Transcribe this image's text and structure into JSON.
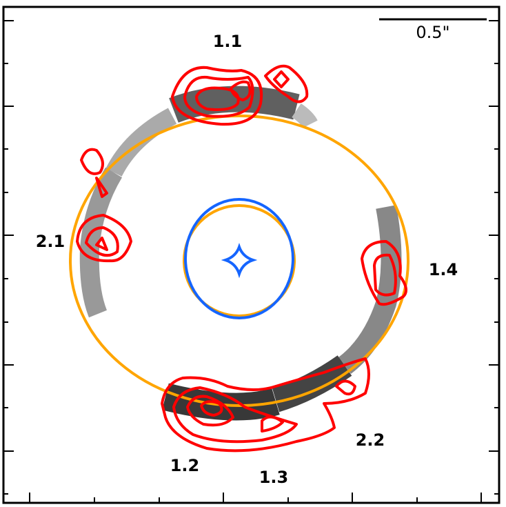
{
  "scale_bar": {
    "label": "0.5\""
  },
  "images": [
    {
      "label": "1.1"
    },
    {
      "label": "1.2"
    },
    {
      "label": "1.3"
    },
    {
      "label": "1.4"
    },
    {
      "label": "2.1"
    },
    {
      "label": "2.2"
    }
  ]
}
